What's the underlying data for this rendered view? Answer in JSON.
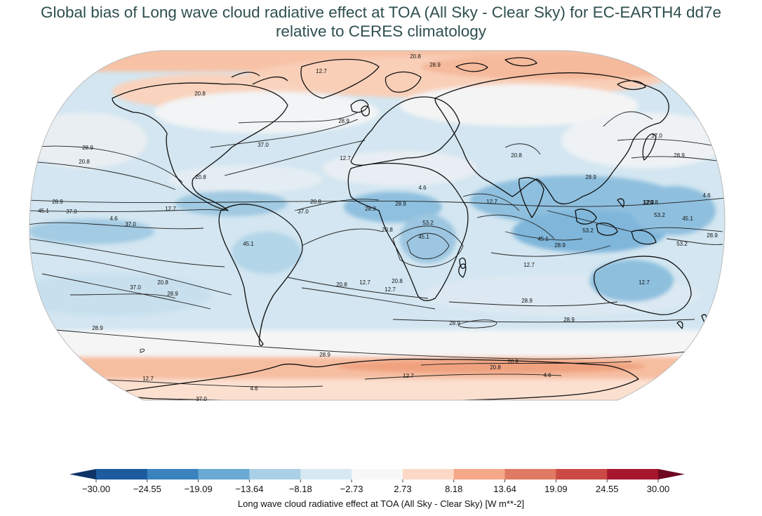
{
  "title": {
    "line1": "Global bias of Long wave cloud radiative effect at TOA (All Sky - Clear Sky) for EC-EARTH4 dd7e",
    "line2": "relative to CERES climatology"
  },
  "colorbar": {
    "label": "Long wave cloud radiative effect at TOA (All Sky - Clear Sky) [W m**-2]",
    "ticks": [
      "−30.00",
      "−24.55",
      "−19.09",
      "−13.64",
      "−8.18",
      "−2.73",
      "2.73",
      "8.18",
      "13.64",
      "19.09",
      "24.55",
      "30.00"
    ],
    "colors": [
      "#1c5b9e",
      "#3b83bf",
      "#6aaad4",
      "#a9d0e6",
      "#d7e8f2",
      "#f7f7f7",
      "#fbd9c6",
      "#f4a889",
      "#e07a62",
      "#cc4a45",
      "#a6172e"
    ],
    "under_color": "#0c3467",
    "over_color": "#6e0820"
  },
  "contour_labels": [
    {
      "text": "20.8"
    },
    {
      "text": "28.9"
    },
    {
      "text": "12.7"
    },
    {
      "text": "20.8"
    },
    {
      "text": "28.9"
    },
    {
      "text": "37.0"
    },
    {
      "text": "28.9"
    },
    {
      "text": "20.8"
    },
    {
      "text": "12.7"
    },
    {
      "text": "20.8"
    },
    {
      "text": "37.0"
    },
    {
      "text": "28.9"
    },
    {
      "text": "4.6"
    },
    {
      "text": "20.8"
    },
    {
      "text": "28.9"
    },
    {
      "text": "45.1"
    },
    {
      "text": "37.0"
    },
    {
      "text": "12.7"
    },
    {
      "text": "4.6"
    },
    {
      "text": "37.0"
    },
    {
      "text": "37.0"
    },
    {
      "text": "20.8"
    },
    {
      "text": "45.1"
    },
    {
      "text": "28.9"
    },
    {
      "text": "28.9"
    },
    {
      "text": "20.8"
    },
    {
      "text": "53.2"
    },
    {
      "text": "45.1"
    },
    {
      "text": "12.7"
    },
    {
      "text": "4.6"
    },
    {
      "text": "12.7"
    },
    {
      "text": "37.0"
    },
    {
      "text": "20.8"
    },
    {
      "text": "53.2"
    },
    {
      "text": "45.1"
    },
    {
      "text": "53.2"
    },
    {
      "text": "45.1"
    },
    {
      "text": "28.9"
    },
    {
      "text": "53.2"
    },
    {
      "text": "28.9"
    },
    {
      "text": "12.7"
    },
    {
      "text": "12.7"
    },
    {
      "text": "37.0"
    },
    {
      "text": "20.8"
    },
    {
      "text": "28.9"
    },
    {
      "text": "20.8"
    },
    {
      "text": "12.7"
    },
    {
      "text": "12.7"
    },
    {
      "text": "20.8"
    },
    {
      "text": "28.9"
    },
    {
      "text": "28.9"
    },
    {
      "text": "28.9"
    },
    {
      "text": "28.9"
    },
    {
      "text": "28.9"
    },
    {
      "text": "20.8"
    },
    {
      "text": "20.8"
    },
    {
      "text": "12.7"
    },
    {
      "text": "12.7"
    },
    {
      "text": "4.6"
    },
    {
      "text": "4.6"
    },
    {
      "text": "37.0"
    },
    {
      "text": "28.9"
    }
  ]
}
